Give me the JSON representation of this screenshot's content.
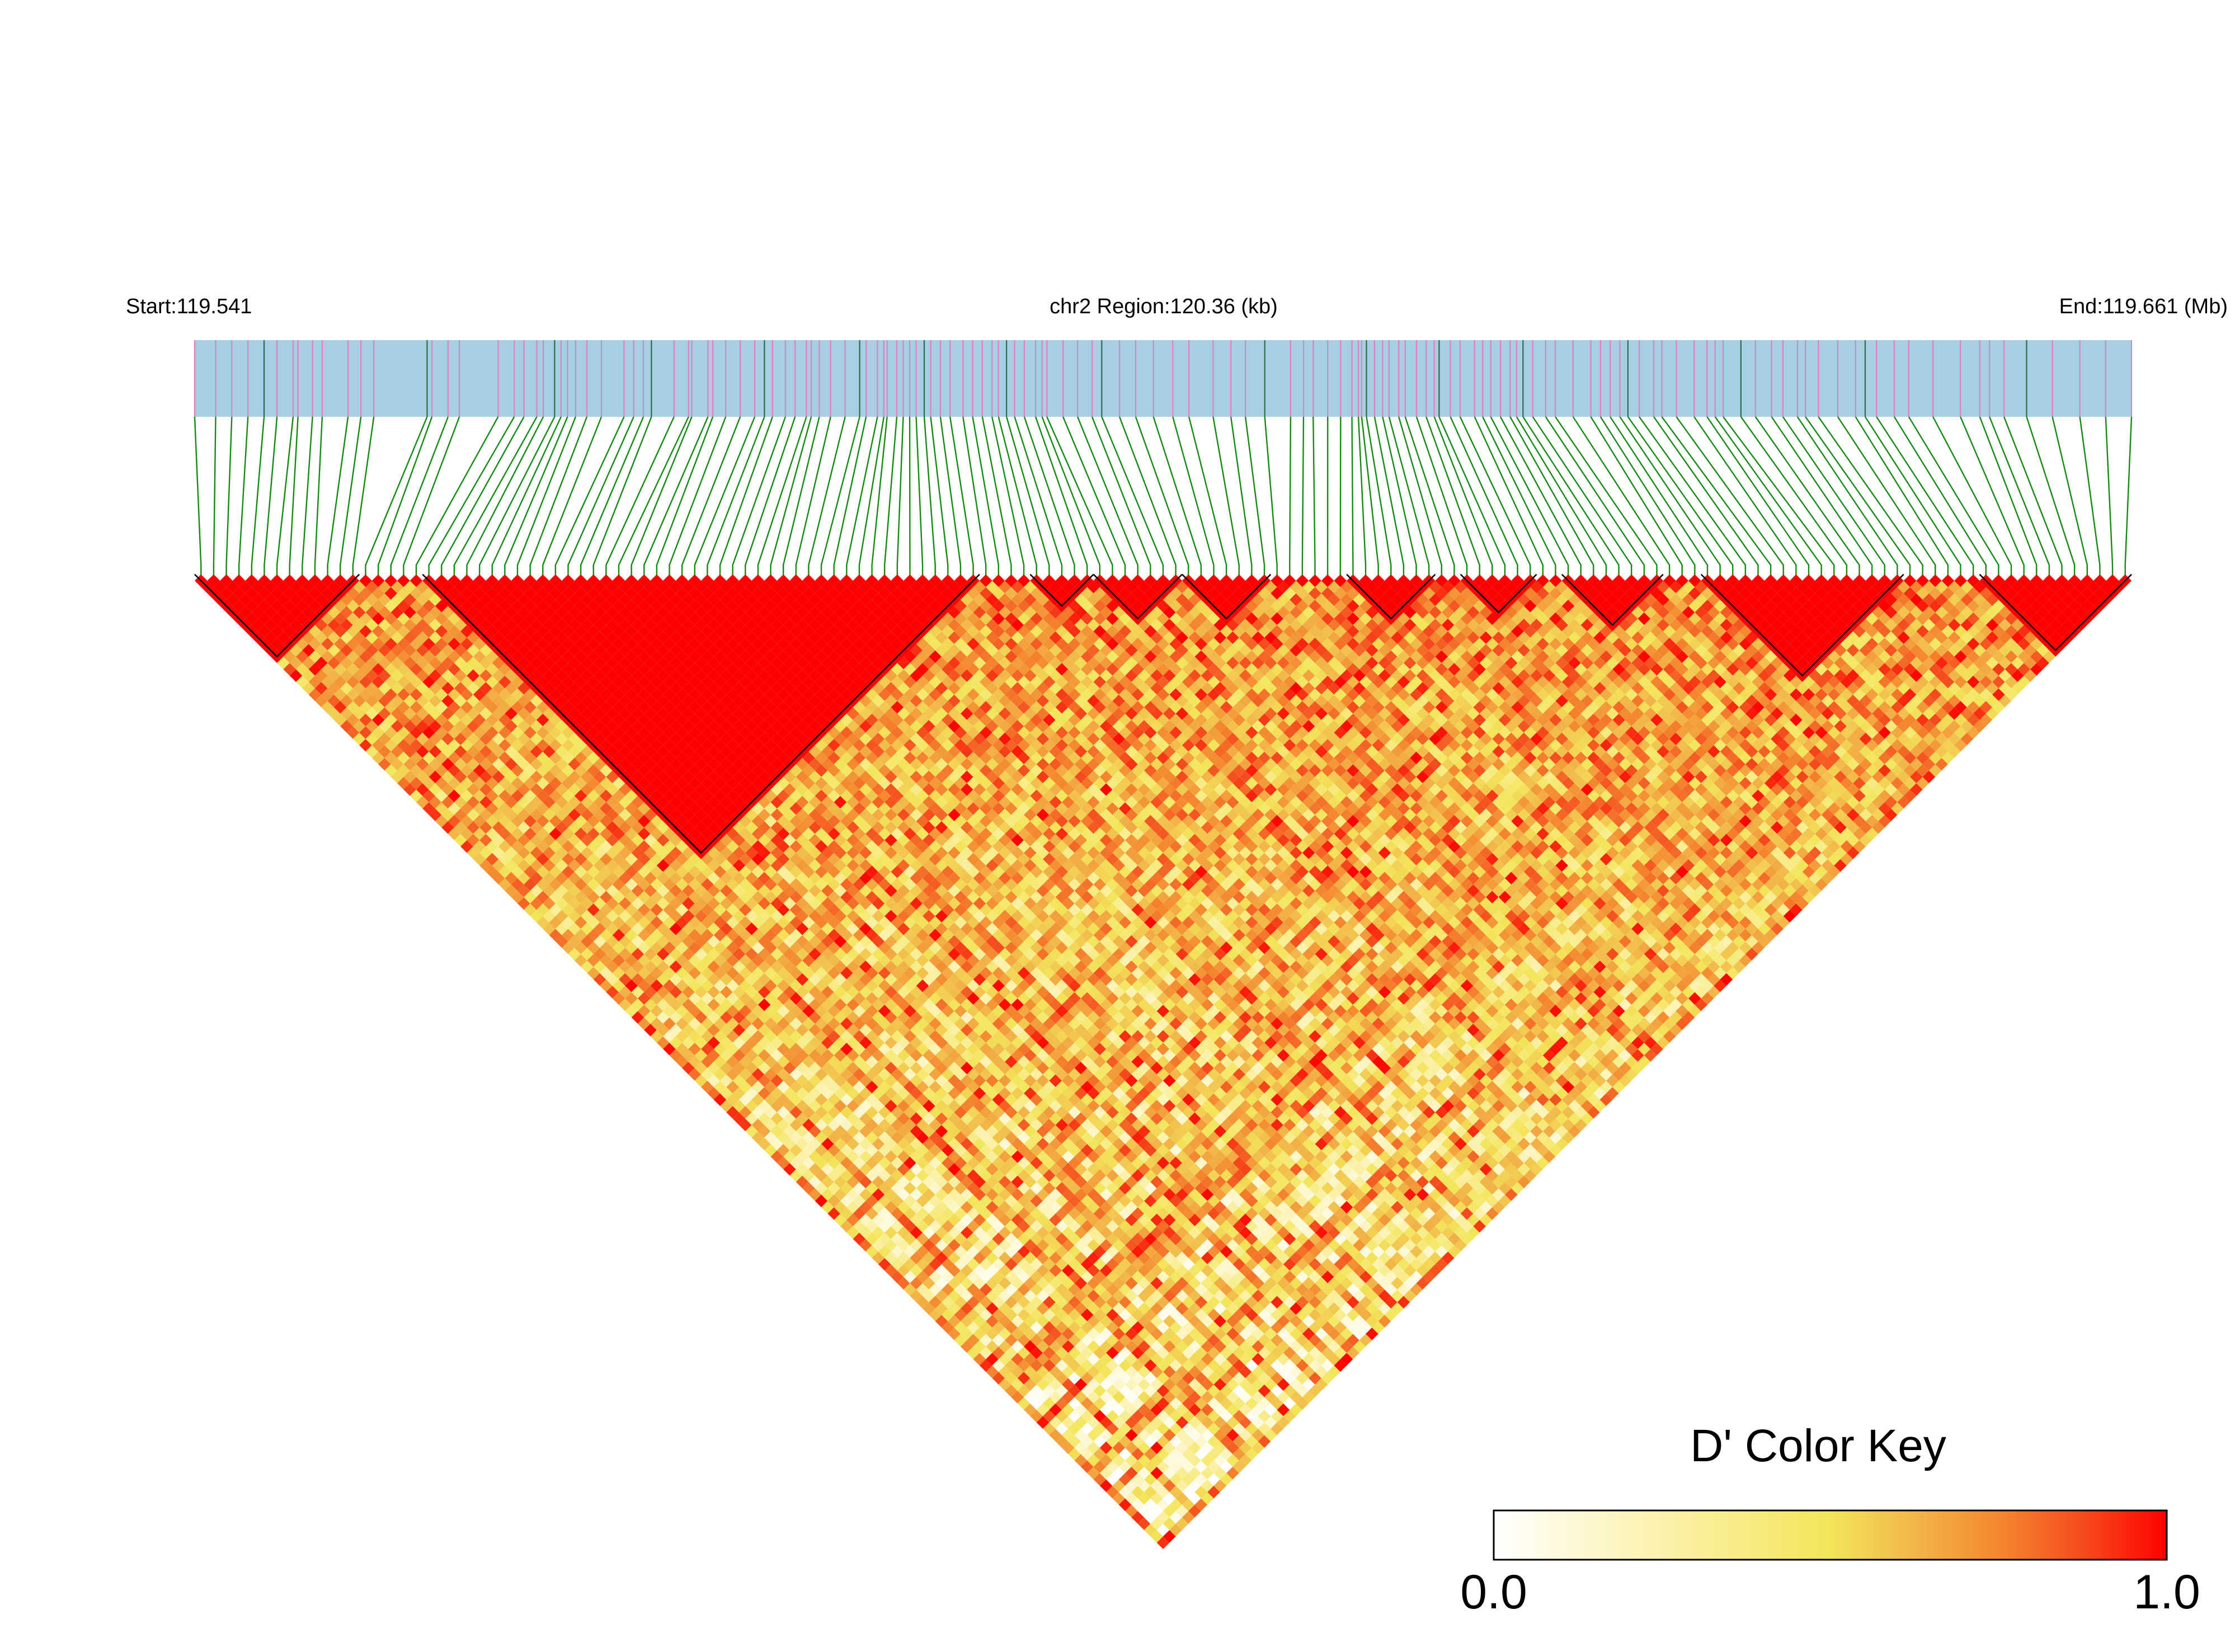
{
  "header": {
    "start_label": "Start:119.541",
    "region_label": "chr2 Region:120.36 (kb)",
    "end_label": "End:119.661 (Mb)"
  },
  "legend": {
    "title": "D' Color Key",
    "min_label": "0.0",
    "max_label": "1.0",
    "stops": [
      "#ffffff",
      "#fdf5c2",
      "#f3e55a",
      "#f2b84a",
      "#f4872f",
      "#f5491c",
      "#ff0000"
    ]
  },
  "colors": {
    "track_fill": "#a6cfe3",
    "marker_pink": "#e27ec1",
    "marker_dark": "#2e6a4e",
    "connector": "#138a13",
    "block_border": "#000000",
    "high_ld": "#ff0000"
  },
  "chart_data": {
    "type": "heatmap",
    "subtype": "linkage-disequilibrium-triangle",
    "metric": "D'",
    "title": "",
    "xlabel": "chr2 Region:120.36 (kb)",
    "xlim_mb": [
      119.541,
      119.661
    ],
    "value_range": [
      0.0,
      1.0
    ],
    "snp_count": 153,
    "marker_positions_mb": [
      119.541,
      119.5423,
      119.5433,
      119.5443,
      119.5453,
      119.5461,
      119.5471,
      119.5474,
      119.5483,
      119.5489,
      119.5505,
      119.5513,
      119.5521,
      119.5554,
      119.5557,
      119.5567,
      119.5574,
      119.5598,
      119.5608,
      119.5614,
      119.5622,
      119.5626,
      119.5633,
      119.5637,
      119.5641,
      119.5646,
      119.5653,
      119.5662,
      119.5676,
      119.5682,
      119.5688,
      119.5693,
      119.5707,
      119.5716,
      119.5718,
      119.5728,
      119.5731,
      119.5739,
      119.5748,
      119.5757,
      119.5763,
      119.5768,
      119.5776,
      119.5782,
      119.5789,
      119.5792,
      119.5797,
      119.5804,
      119.5813,
      119.5822,
      119.5826,
      119.5833,
      119.5837,
      119.5839,
      119.5845,
      119.5849,
      119.5853,
      119.5857,
      119.5862,
      119.5866,
      119.5872,
      119.5878,
      119.5886,
      119.5892,
      119.5898,
      119.5904,
      119.5908,
      119.5913,
      119.5918,
      119.5924,
      119.5931,
      119.5935,
      119.5938,
      119.5948,
      119.5957,
      119.5966,
      119.5972,
      119.5983,
      119.5993,
      119.6004,
      119.6016,
      119.6026,
      119.6041,
      119.6052,
      119.6061,
      119.6073,
      119.6089,
      119.6097,
      119.6103,
      119.6112,
      119.612,
      119.6127,
      119.6131,
      119.6133,
      119.6136,
      119.6141,
      119.6146,
      119.615,
      119.6156,
      119.616,
      119.6167,
      119.6173,
      119.6178,
      119.6181,
      119.6188,
      119.6194,
      119.6203,
      119.6208,
      119.6213,
      119.6219,
      119.6225,
      119.6229,
      119.6233,
      119.6239,
      119.6247,
      119.6253,
      119.6264,
      119.6275,
      119.6281,
      119.6287,
      119.6293,
      119.6298,
      119.6305,
      119.6314,
      119.6319,
      119.6328,
      119.6339,
      119.6347,
      119.6352,
      119.6357,
      119.6368,
      119.6377,
      119.6387,
      119.6394,
      119.6403,
      119.6408,
      119.6416,
      119.6428,
      119.6439,
      119.6445,
      119.6452,
      119.6463,
      119.6472,
      119.6487,
      119.6504,
      119.6516,
      119.6522,
      119.6531,
      119.6545,
      119.6561,
      119.6578,
      119.6594,
      119.661
    ],
    "ld_blocks": [
      {
        "first_snp": 0,
        "last_snp": 12
      },
      {
        "first_snp": 18,
        "last_snp": 61
      },
      {
        "first_snp": 66,
        "last_snp": 70
      },
      {
        "first_snp": 71,
        "last_snp": 77
      },
      {
        "first_snp": 78,
        "last_snp": 84
      },
      {
        "first_snp": 91,
        "last_snp": 97
      },
      {
        "first_snp": 100,
        "last_snp": 105
      },
      {
        "first_snp": 108,
        "last_snp": 115
      },
      {
        "first_snp": 119,
        "last_snp": 134
      },
      {
        "first_snp": 141,
        "last_snp": 152
      }
    ],
    "grid": false,
    "legend_position": "bottom-right"
  }
}
